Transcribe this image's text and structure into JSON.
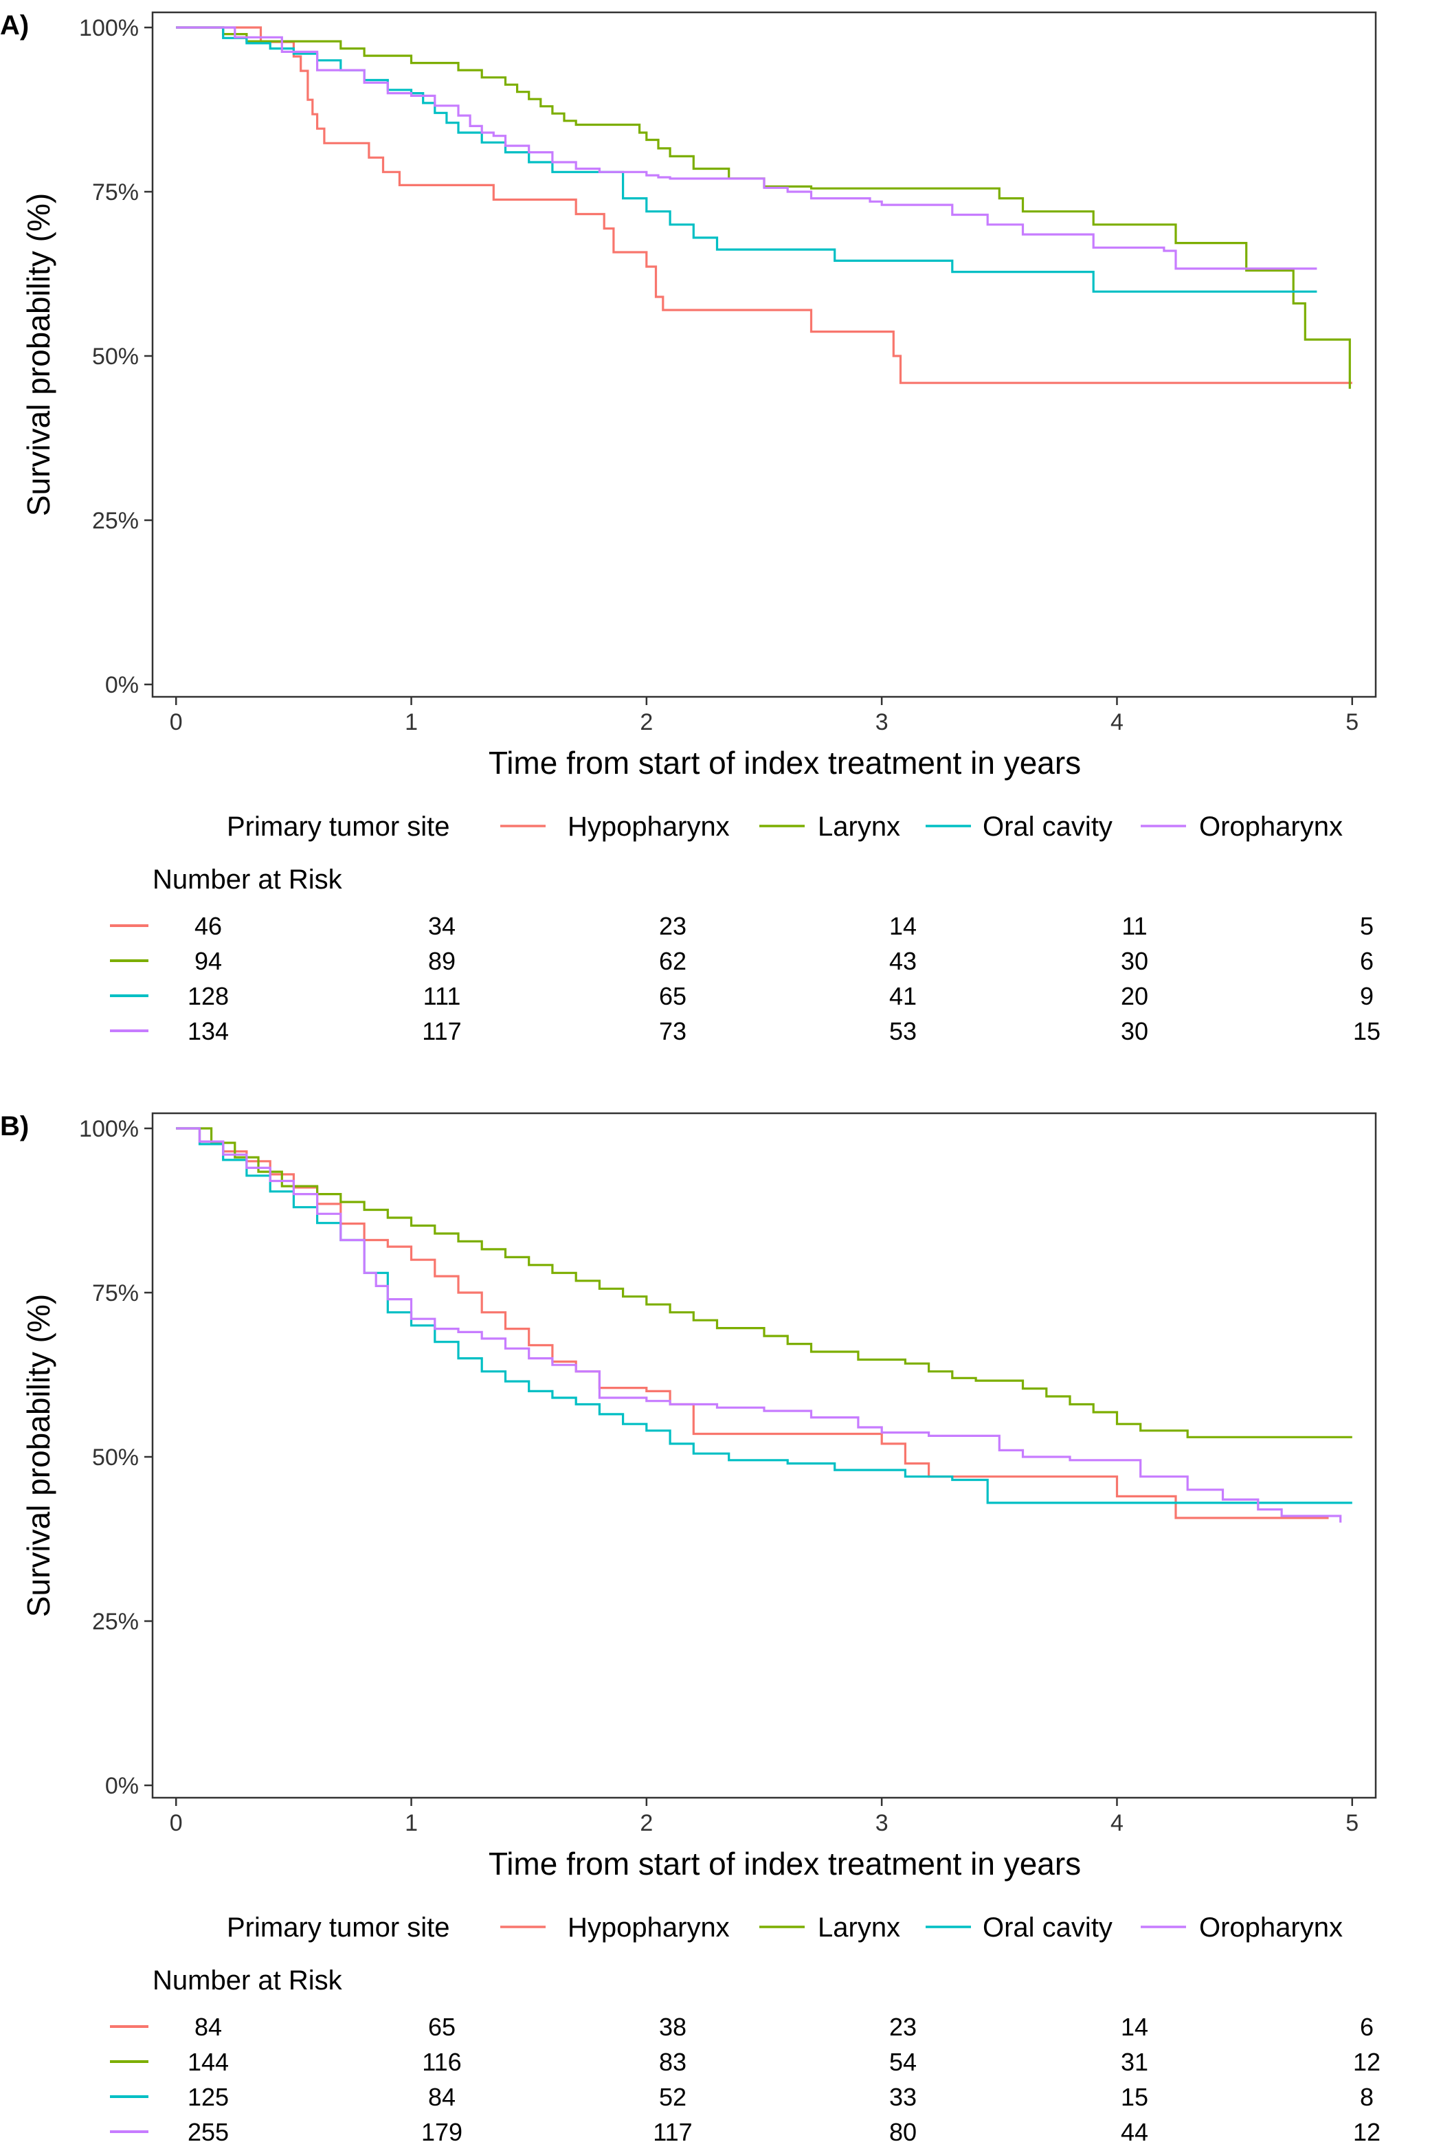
{
  "figure": {
    "x_label": "Time from start of index treatment in years",
    "y_label": "Survival probability (%)",
    "legend_title": "Primary tumor site",
    "risk_title": "Number at Risk"
  },
  "colors": {
    "Hypopharynx": "#F8766D",
    "Larynx": "#7CAE00",
    "Oral cavity": "#00BFC4",
    "Oropharynx": "#C77CFF"
  },
  "chart_data": [
    {
      "panel_label": "A)",
      "type": "line",
      "title": "",
      "xlabel": "Time from start of index treatment in years",
      "ylabel": "Survival probability (%)",
      "xlim": [
        -0.1,
        5.1
      ],
      "ylim": [
        0,
        100
      ],
      "x_ticks": [
        "0",
        "1",
        "2",
        "3",
        "4",
        "5"
      ],
      "y_ticks": [
        "0%",
        "25%",
        "50%",
        "75%",
        "100%"
      ],
      "legend": [
        "Hypopharynx",
        "Larynx",
        "Oral cavity",
        "Oropharynx"
      ],
      "series": [
        {
          "name": "Hypopharynx",
          "x": [
            0,
            0.36,
            0.5,
            0.53,
            0.56,
            0.58,
            0.6,
            0.63,
            0.82,
            0.88,
            0.95,
            1.35,
            1.7,
            1.82,
            1.86,
            1.9,
            2.0,
            2.04,
            2.07,
            2.7,
            3.05,
            3.08,
            5.0
          ],
          "y": [
            100,
            97.8,
            95.6,
            93.4,
            89,
            86.8,
            84.6,
            82.4,
            80.2,
            78,
            76,
            73.8,
            71.6,
            69.4,
            65.8,
            65.8,
            63.6,
            59,
            57,
            53.7,
            50,
            45.9,
            45.9
          ]
        },
        {
          "name": "Larynx",
          "x": [
            0,
            0.2,
            0.3,
            0.7,
            0.8,
            1.0,
            1.2,
            1.3,
            1.4,
            1.45,
            1.5,
            1.55,
            1.6,
            1.65,
            1.7,
            1.75,
            1.8,
            1.9,
            1.97,
            2.0,
            2.05,
            2.1,
            2.2,
            2.35,
            2.5,
            2.7,
            3.5,
            3.6,
            3.9,
            4.25,
            4.55,
            4.75,
            4.8,
            4.85,
            4.99
          ],
          "y": [
            100,
            99,
            97.9,
            96.8,
            95.7,
            94.6,
            93.5,
            92.4,
            91.3,
            90.2,
            89.1,
            88,
            86.9,
            85.8,
            85.2,
            85.2,
            85.2,
            85.2,
            84,
            82.9,
            81.6,
            80.4,
            78.5,
            77,
            75.8,
            75.5,
            74,
            72,
            70,
            67.2,
            63,
            58,
            52.5,
            52.5,
            45
          ]
        },
        {
          "name": "Oral cavity",
          "x": [
            0,
            0.2,
            0.3,
            0.4,
            0.5,
            0.6,
            0.7,
            0.8,
            0.9,
            1.0,
            1.05,
            1.1,
            1.15,
            1.2,
            1.3,
            1.4,
            1.5,
            1.6,
            1.9,
            2.0,
            2.1,
            2.2,
            2.3,
            2.8,
            3.3,
            3.9,
            4.85
          ],
          "y": [
            100,
            98.4,
            97.6,
            96.8,
            96,
            95,
            93.5,
            92,
            90.5,
            90,
            88.5,
            87,
            85.5,
            84,
            82.5,
            81,
            79.5,
            78,
            74,
            72,
            70,
            68,
            66.2,
            64.5,
            62.8,
            59.8,
            59.8
          ]
        },
        {
          "name": "Oropharynx",
          "x": [
            0,
            0.25,
            0.45,
            0.6,
            0.8,
            0.9,
            1.0,
            1.1,
            1.2,
            1.25,
            1.3,
            1.35,
            1.4,
            1.5,
            1.6,
            1.7,
            1.8,
            1.9,
            2.0,
            2.05,
            2.1,
            2.5,
            2.6,
            2.7,
            2.95,
            3.0,
            3.3,
            3.45,
            3.6,
            3.9,
            4.2,
            4.25,
            4.85
          ],
          "y": [
            100,
            98.5,
            96.3,
            93.5,
            91.6,
            90,
            89.6,
            88.1,
            86.6,
            85,
            84,
            83.5,
            82,
            81,
            79.5,
            78.5,
            78,
            78,
            77.5,
            77.2,
            77,
            75.6,
            75,
            74,
            73.5,
            73,
            71.5,
            70,
            68.5,
            66.5,
            66,
            63.3,
            63.3
          ]
        }
      ],
      "risk_table": {
        "times": [
          0,
          1,
          2,
          3,
          4,
          5
        ],
        "rows": [
          {
            "name": "Hypopharynx",
            "values": [
              "46",
              "34",
              "23",
              "14",
              "11",
              "5"
            ]
          },
          {
            "name": "Larynx",
            "values": [
              "94",
              "89",
              "62",
              "43",
              "30",
              "6"
            ]
          },
          {
            "name": "Oral cavity",
            "values": [
              "128",
              "111",
              "65",
              "41",
              "20",
              "9"
            ]
          },
          {
            "name": "Oropharynx",
            "values": [
              "134",
              "117",
              "73",
              "53",
              "30",
              "15"
            ]
          }
        ]
      }
    },
    {
      "panel_label": "B)",
      "type": "line",
      "title": "",
      "xlabel": "Time from start of index treatment in years",
      "ylabel": "Survival probability (%)",
      "xlim": [
        -0.1,
        5.1
      ],
      "ylim": [
        0,
        100
      ],
      "x_ticks": [
        "0",
        "1",
        "2",
        "3",
        "4",
        "5"
      ],
      "y_ticks": [
        "0%",
        "25%",
        "50%",
        "75%",
        "100%"
      ],
      "legend": [
        "Hypopharynx",
        "Larynx",
        "Oral cavity",
        "Oropharynx"
      ],
      "series": [
        {
          "name": "Hypopharynx",
          "x": [
            0,
            0.1,
            0.2,
            0.3,
            0.4,
            0.5,
            0.6,
            0.7,
            0.8,
            0.9,
            1.0,
            1.1,
            1.2,
            1.3,
            1.4,
            1.5,
            1.6,
            1.7,
            1.8,
            2.0,
            2.1,
            2.2,
            3.0,
            3.1,
            3.2,
            4.0,
            4.05,
            4.25,
            4.9
          ],
          "y": [
            100,
            98,
            96.5,
            95,
            93,
            91,
            88.5,
            85.5,
            83,
            82,
            80,
            77.5,
            75,
            72,
            69.5,
            67,
            64.5,
            63,
            60.5,
            60,
            58,
            53.5,
            52,
            49,
            47,
            44,
            44,
            40.7,
            40.7
          ]
        },
        {
          "name": "Larynx",
          "x": [
            0,
            0.15,
            0.25,
            0.35,
            0.45,
            0.6,
            0.7,
            0.8,
            0.9,
            1.0,
            1.1,
            1.2,
            1.3,
            1.4,
            1.5,
            1.6,
            1.7,
            1.8,
            1.9,
            2.0,
            2.1,
            2.2,
            2.3,
            2.5,
            2.6,
            2.7,
            2.9,
            3.1,
            3.2,
            3.3,
            3.4,
            3.6,
            3.7,
            3.8,
            3.9,
            4.0,
            4.1,
            4.3,
            5.0
          ],
          "y": [
            100,
            97.8,
            95.6,
            93.4,
            91.2,
            90,
            88.8,
            87.6,
            86.4,
            85.2,
            84,
            82.8,
            81.6,
            80.4,
            79.2,
            78,
            76.8,
            75.6,
            74.4,
            73.2,
            72,
            70.8,
            69.6,
            68.4,
            67.2,
            66,
            64.8,
            64.2,
            63,
            62,
            61.6,
            60.4,
            59.2,
            58,
            56.8,
            55,
            54,
            53,
            53
          ]
        },
        {
          "name": "Oral cavity",
          "x": [
            0,
            0.1,
            0.2,
            0.3,
            0.4,
            0.5,
            0.6,
            0.7,
            0.8,
            0.9,
            1.0,
            1.1,
            1.2,
            1.3,
            1.4,
            1.5,
            1.6,
            1.7,
            1.8,
            1.9,
            2.0,
            2.1,
            2.2,
            2.35,
            2.6,
            2.8,
            3.1,
            3.3,
            3.45,
            4.2,
            5.0
          ],
          "y": [
            100,
            97.6,
            95.2,
            92.8,
            90.4,
            88,
            85.6,
            83,
            78,
            72,
            70,
            67.5,
            65,
            63,
            61.5,
            60,
            59,
            58,
            56.5,
            55,
            54,
            52,
            50.5,
            49.5,
            49,
            48,
            47,
            46.5,
            43,
            43,
            43
          ]
        },
        {
          "name": "Oropharynx",
          "x": [
            0,
            0.1,
            0.2,
            0.3,
            0.4,
            0.5,
            0.6,
            0.7,
            0.8,
            0.85,
            0.9,
            1.0,
            1.1,
            1.2,
            1.3,
            1.4,
            1.5,
            1.6,
            1.7,
            1.8,
            2.0,
            2.1,
            2.3,
            2.5,
            2.7,
            2.9,
            3.0,
            3.2,
            3.5,
            3.6,
            3.8,
            4.1,
            4.3,
            4.45,
            4.6,
            4.7,
            4.95
          ],
          "y": [
            100,
            98,
            96,
            94,
            92,
            90,
            87,
            83,
            78,
            76,
            74,
            71,
            69.5,
            69,
            68,
            66.5,
            65,
            64,
            63,
            59,
            58.5,
            58,
            57.5,
            57,
            56,
            54.5,
            53.7,
            53.2,
            51,
            50,
            49.5,
            47,
            45,
            43.5,
            42,
            41,
            40
          ]
        }
      ],
      "risk_table": {
        "times": [
          0,
          1,
          2,
          3,
          4,
          5
        ],
        "rows": [
          {
            "name": "Hypopharynx",
            "values": [
              "84",
              "65",
              "38",
              "23",
              "14",
              "6"
            ]
          },
          {
            "name": "Larynx",
            "values": [
              "144",
              "116",
              "83",
              "54",
              "31",
              "12"
            ]
          },
          {
            "name": "Oral cavity",
            "values": [
              "125",
              "84",
              "52",
              "33",
              "15",
              "8"
            ]
          },
          {
            "name": "Oropharynx",
            "values": [
              "255",
              "179",
              "117",
              "80",
              "44",
              "12"
            ]
          }
        ]
      }
    }
  ]
}
